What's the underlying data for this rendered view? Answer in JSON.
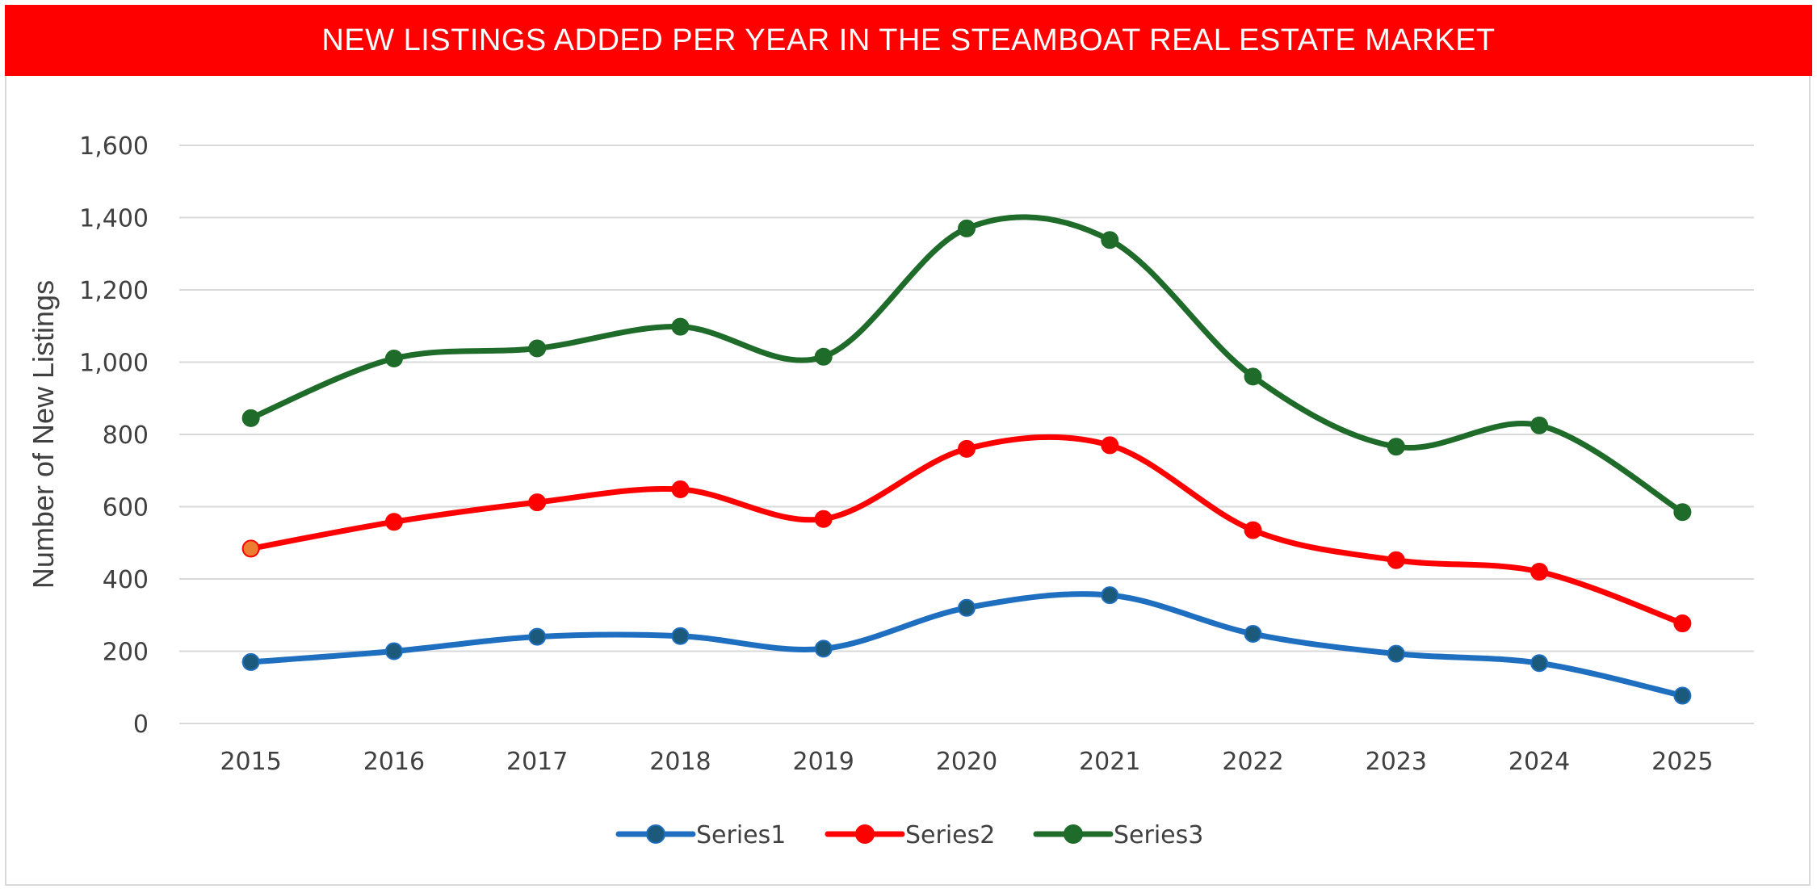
{
  "colors": {
    "title_bg": "#ff0000",
    "title_text": "#ffffff",
    "grid": "#d9d9d9",
    "text": "#404040"
  },
  "chart_data": {
    "type": "line",
    "title": "NEW LISTINGS ADDED PER YEAR IN THE STEAMBOAT REAL ESTATE MARKET",
    "xlabel": "",
    "ylabel": "Number of New Listings",
    "ylim": [
      0,
      1600
    ],
    "yticks": [
      0,
      200,
      400,
      600,
      800,
      1000,
      1200,
      1400,
      1600
    ],
    "ytick_labels": [
      "0",
      "200",
      "400",
      "600",
      "800",
      "1,000",
      "1,200",
      "1,400",
      "1,600"
    ],
    "categories": [
      "2015",
      "2016",
      "2017",
      "2018",
      "2019",
      "2020",
      "2021",
      "2022",
      "2023",
      "2024",
      "2025"
    ],
    "grid": true,
    "legend_position": "bottom",
    "smooth": true,
    "series": [
      {
        "name": "Series1",
        "color": "#1f6fc0",
        "marker_color": "#1b5a7a",
        "values": [
          170,
          200,
          240,
          242,
          207,
          320,
          355,
          248,
          193,
          167,
          77
        ]
      },
      {
        "name": "Series2",
        "color": "#ff0000",
        "marker_color": "#ff0000",
        "first_marker_color": "#ed7d31",
        "values": [
          484,
          558,
          612,
          648,
          566,
          760,
          770,
          535,
          452,
          420,
          277
        ]
      },
      {
        "name": "Series3",
        "color": "#1e6b2a",
        "marker_color": "#1e6b2a",
        "values": [
          845,
          1010,
          1038,
          1098,
          1015,
          1370,
          1338,
          960,
          766,
          825,
          585
        ]
      }
    ]
  }
}
